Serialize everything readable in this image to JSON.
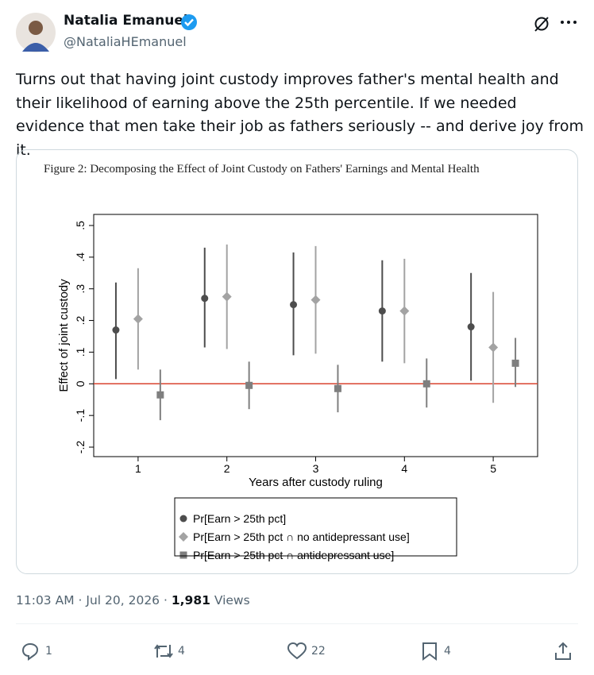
{
  "author": {
    "name": "Natalia Emanuel",
    "handle": "@NataliaHEmanuel"
  },
  "tweet": {
    "text": "Turns out that having joint custody improves father's mental health and their likelihood of earning above the 25th percentile. If we needed evidence that men take their job as fathers seriously -- and derive joy from it."
  },
  "chart_data": {
    "type": "errorbar",
    "title": "Figure 2:  Decomposing the Effect of Joint Custody on Fathers' Earnings and Mental Health",
    "x_label": "Years after custody ruling",
    "y_label": "Effect of joint custody",
    "x": [
      1,
      2,
      3,
      4,
      5
    ],
    "xlim": [
      0.5,
      5.5
    ],
    "xticks": [
      1,
      2,
      3,
      4,
      5
    ],
    "ylim": [
      -0.23,
      0.535
    ],
    "yticks": [
      {
        "value": -0.2,
        "label": "-.2"
      },
      {
        "value": -0.1,
        "label": "-.1"
      },
      0,
      {
        "value": 0.1,
        "label": ".1"
      },
      {
        "value": 0.2,
        "label": ".2"
      },
      {
        "value": 0.3,
        "label": ".3"
      },
      {
        "value": 0.4,
        "label": ".4"
      },
      {
        "value": 0.5,
        "label": ".5"
      }
    ],
    "reference_line": {
      "value": 0,
      "color": "#d9432f"
    },
    "series": [
      {
        "name": "Pr[Earn > 25th pct]",
        "color": "#4d4d4d",
        "marker": "circle",
        "values": [
          0.17,
          0.27,
          0.25,
          0.23,
          0.18
        ],
        "lower": [
          0.015,
          0.115,
          0.09,
          0.07,
          0.01
        ],
        "upper": [
          0.32,
          0.43,
          0.415,
          0.39,
          0.35
        ]
      },
      {
        "name": "Pr[Earn > 25th pct ∩ no antidepressant use]",
        "color": "#a3a3a3",
        "marker": "diamond",
        "values": [
          0.205,
          0.275,
          0.265,
          0.23,
          0.115
        ],
        "lower": [
          0.045,
          0.11,
          0.095,
          0.065,
          -0.06
        ],
        "upper": [
          0.365,
          0.44,
          0.435,
          0.395,
          0.29
        ]
      },
      {
        "name": "Pr[Earn > 25th pct ∩ antidepressant use]",
        "color": "#7f7f7f",
        "marker": "square",
        "values": [
          -0.035,
          -0.005,
          -0.015,
          0.0,
          0.065
        ],
        "lower": [
          -0.115,
          -0.08,
          -0.09,
          -0.075,
          -0.01
        ],
        "upper": [
          0.045,
          0.07,
          0.06,
          0.08,
          0.145
        ]
      }
    ]
  },
  "meta": {
    "time": "11:03 AM",
    "separator": "·",
    "date": "Jul 20, 2026",
    "views": "1,981",
    "views_label": "Views"
  },
  "actions": {
    "replies": 1,
    "reposts": 4,
    "likes": 22,
    "bookmarks": 4
  }
}
